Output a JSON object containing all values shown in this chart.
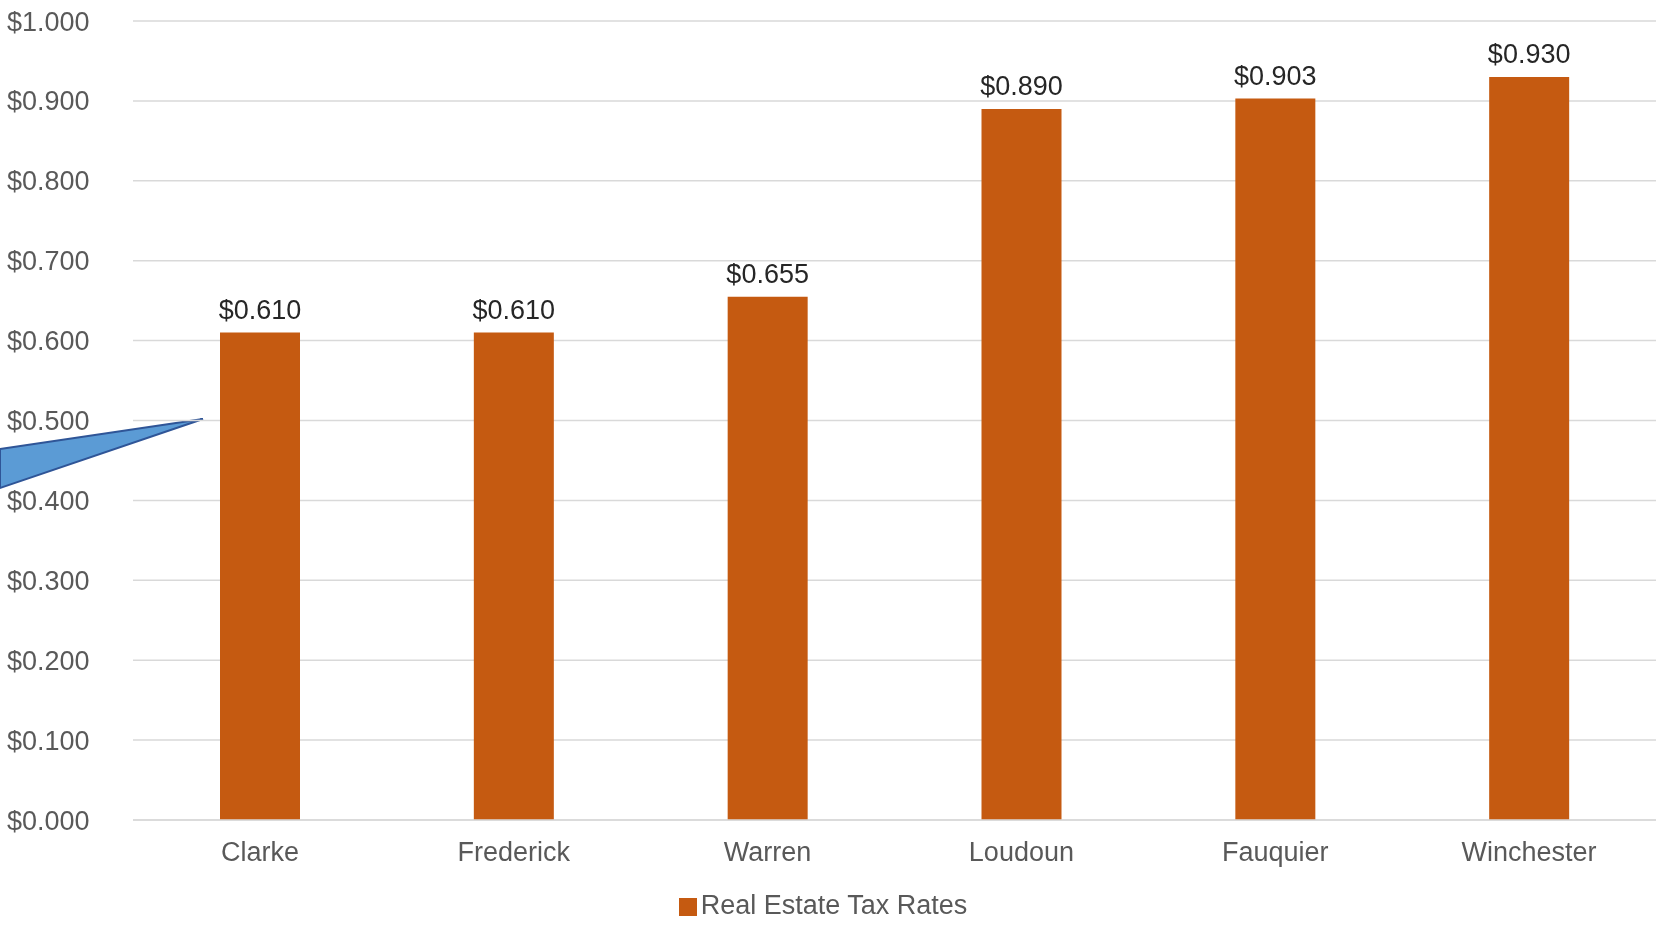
{
  "chart_data": {
    "type": "bar",
    "categories": [
      "Clarke",
      "Frederick",
      "Warren",
      "Loudoun",
      "Fauquier",
      "Winchester"
    ],
    "series": [
      {
        "name": "Real Estate Tax Rates",
        "color": "#c55a11",
        "values": [
          0.61,
          0.61,
          0.655,
          0.89,
          0.903,
          0.93
        ],
        "value_labels": [
          "$0.610",
          "$0.610",
          "$0.655",
          "$0.890",
          "$0.903",
          "$0.930"
        ]
      }
    ],
    "ylim": [
      0,
      1
    ],
    "yticks": [
      {
        "value": 0,
        "label": "$0.000"
      },
      {
        "value": 0.1,
        "label": "$0.100"
      },
      {
        "value": 0.2,
        "label": "$0.200"
      },
      {
        "value": 0.3,
        "label": "$0.300"
      },
      {
        "value": 0.4,
        "label": "$0.400"
      },
      {
        "value": 0.5,
        "label": "$0.500"
      },
      {
        "value": 0.6,
        "label": "$0.600"
      },
      {
        "value": 0.7,
        "label": "$0.700"
      },
      {
        "value": 0.8,
        "label": "$0.800"
      },
      {
        "value": 0.9,
        "label": "$0.900"
      },
      {
        "value": 1,
        "label": "$1.000"
      }
    ],
    "grid": "y",
    "legend": "bottom"
  }
}
